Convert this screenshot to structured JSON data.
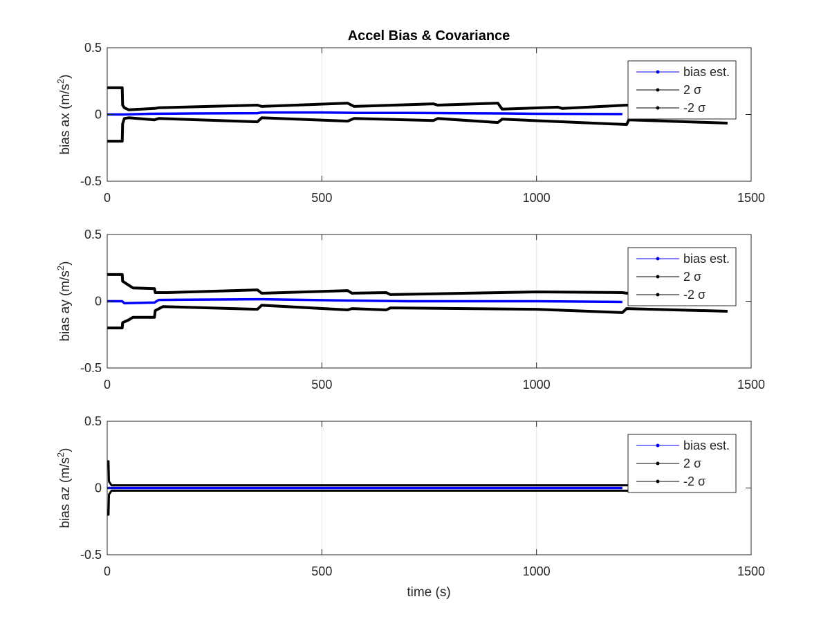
{
  "figure": {
    "title": "Accel Bias & Covariance",
    "xlabel": "time (s)"
  },
  "chart_data": [
    {
      "type": "line",
      "ylabel_main": "bias ax (m/s",
      "ylabel_sup": "2",
      "ylabel_end": ")",
      "xlim": [
        0,
        1500
      ],
      "ylim": [
        -0.5,
        0.5
      ],
      "xticks": [
        "0",
        "500",
        "1000",
        "1500"
      ],
      "yticks": [
        "-0.5",
        "0",
        "0.5"
      ],
      "grid": "x-only",
      "legend_position": "top-right",
      "series": [
        {
          "name": "bias est.",
          "color": "#0000ff",
          "x": [
            0,
            35,
            40,
            100,
            200,
            350,
            360,
            500,
            580,
            700,
            800,
            920,
            1000,
            1200
          ],
          "y": [
            0.0,
            0.0,
            0.0,
            0.005,
            0.008,
            0.01,
            0.015,
            0.015,
            0.012,
            0.012,
            0.01,
            0.008,
            0.005,
            0.003
          ]
        },
        {
          "name": "2 σ",
          "color": "#000000",
          "x": [
            0,
            35,
            36,
            40,
            50,
            110,
            120,
            350,
            360,
            560,
            575,
            760,
            770,
            910,
            920,
            1050,
            1060,
            1210,
            1215
          ],
          "y": [
            0.2,
            0.2,
            0.07,
            0.05,
            0.035,
            0.045,
            0.05,
            0.07,
            0.06,
            0.085,
            0.06,
            0.08,
            0.07,
            0.085,
            0.04,
            0.055,
            0.045,
            0.07,
            0.07
          ]
        },
        {
          "name": "-2 σ",
          "color": "#000000",
          "x": [
            0,
            35,
            36,
            40,
            50,
            110,
            120,
            350,
            360,
            560,
            575,
            760,
            770,
            910,
            920,
            1210,
            1215,
            1445
          ],
          "y": [
            -0.2,
            -0.2,
            -0.07,
            -0.03,
            -0.025,
            -0.04,
            -0.03,
            -0.055,
            -0.025,
            -0.05,
            -0.03,
            -0.045,
            -0.03,
            -0.06,
            -0.035,
            -0.075,
            -0.04,
            -0.065
          ]
        }
      ]
    },
    {
      "type": "line",
      "ylabel_main": "bias ay (m/s",
      "ylabel_sup": "2",
      "ylabel_end": ")",
      "xlim": [
        0,
        1500
      ],
      "ylim": [
        -0.5,
        0.5
      ],
      "xticks": [
        "0",
        "500",
        "1000",
        "1500"
      ],
      "yticks": [
        "-0.5",
        "0",
        "0.5"
      ],
      "grid": "x-only",
      "legend_position": "top-right",
      "series": [
        {
          "name": "bias est.",
          "color": "#0000ff",
          "x": [
            0,
            35,
            40,
            110,
            120,
            350,
            360,
            560,
            570,
            700,
            900,
            1000,
            1200
          ],
          "y": [
            0.0,
            0.0,
            -0.015,
            -0.01,
            0.01,
            0.015,
            0.015,
            0.005,
            0.005,
            0.0,
            0.0,
            0.0,
            -0.005
          ]
        },
        {
          "name": "2 σ",
          "color": "#000000",
          "x": [
            0,
            35,
            36,
            50,
            60,
            110,
            112,
            140,
            350,
            360,
            560,
            570,
            650,
            660,
            1000,
            1200,
            1210,
            1215
          ],
          "y": [
            0.2,
            0.2,
            0.15,
            0.12,
            0.1,
            0.095,
            0.065,
            0.065,
            0.085,
            0.06,
            0.08,
            0.06,
            0.065,
            0.05,
            0.07,
            0.065,
            0.06,
            0.06
          ]
        },
        {
          "name": "-2 σ",
          "color": "#000000",
          "x": [
            0,
            35,
            36,
            50,
            60,
            110,
            112,
            130,
            350,
            360,
            560,
            570,
            650,
            660,
            1000,
            1200,
            1210,
            1445
          ],
          "y": [
            -0.2,
            -0.2,
            -0.16,
            -0.14,
            -0.12,
            -0.12,
            -0.07,
            -0.04,
            -0.06,
            -0.03,
            -0.065,
            -0.055,
            -0.065,
            -0.05,
            -0.06,
            -0.085,
            -0.055,
            -0.075
          ]
        }
      ]
    },
    {
      "type": "line",
      "ylabel_main": "bias az (m/s",
      "ylabel_sup": "2",
      "ylabel_end": ")",
      "xlim": [
        0,
        1500
      ],
      "ylim": [
        -0.5,
        0.5
      ],
      "xticks": [
        "0",
        "500",
        "1000",
        "1500"
      ],
      "yticks": [
        "-0.5",
        "0",
        "0.5"
      ],
      "grid": "x-only",
      "legend_position": "top-right",
      "series": [
        {
          "name": "bias est.",
          "color": "#0000ff",
          "x": [
            0,
            1200
          ],
          "y": [
            0.0,
            0.0
          ]
        },
        {
          "name": "2 σ",
          "color": "#000000",
          "x": [
            0,
            3,
            4,
            10,
            1215
          ],
          "y": [
            0.2,
            0.2,
            0.05,
            0.02,
            0.02
          ]
        },
        {
          "name": "-2 σ",
          "color": "#000000",
          "x": [
            0,
            3,
            4,
            10,
            1215
          ],
          "y": [
            -0.2,
            -0.2,
            -0.05,
            -0.02,
            -0.02
          ]
        }
      ]
    }
  ]
}
